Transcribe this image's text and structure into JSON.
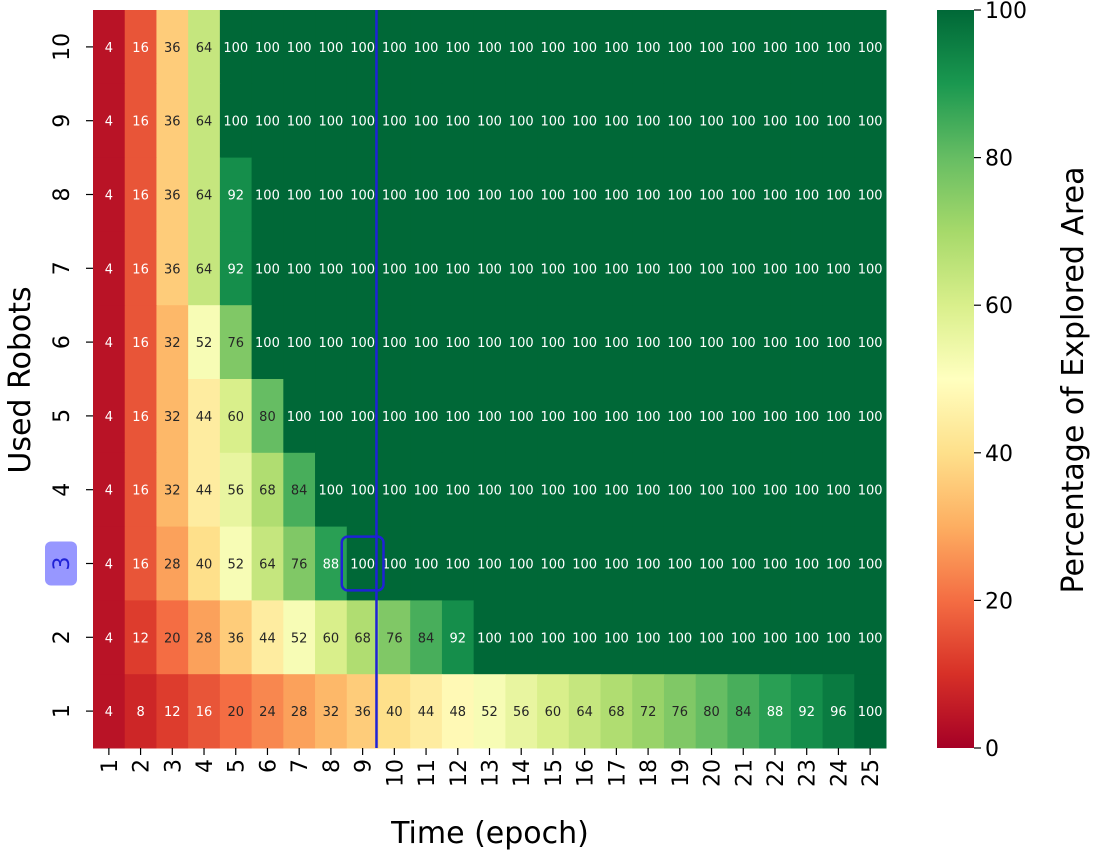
{
  "chart_data": {
    "type": "heatmap",
    "title": "",
    "xlabel": "Time (epoch)",
    "ylabel": "Used Robots",
    "colorbar_label": "Percentage of Explored Area",
    "colormap": "RdYlGn",
    "vmin": 0,
    "vmax": 100,
    "colorbar_ticks": [
      "0",
      "20",
      "40",
      "60",
      "80",
      "100"
    ],
    "x_categories": [
      "1",
      "2",
      "3",
      "4",
      "5",
      "6",
      "7",
      "8",
      "9",
      "10",
      "11",
      "12",
      "13",
      "14",
      "15",
      "16",
      "17",
      "18",
      "19",
      "20",
      "21",
      "22",
      "23",
      "24",
      "25"
    ],
    "y_categories": [
      "10",
      "9",
      "8",
      "7",
      "6",
      "5",
      "4",
      "3",
      "2",
      "1"
    ],
    "values": [
      [
        4,
        16,
        36,
        64,
        100,
        100,
        100,
        100,
        100,
        100,
        100,
        100,
        100,
        100,
        100,
        100,
        100,
        100,
        100,
        100,
        100,
        100,
        100,
        100,
        100
      ],
      [
        4,
        16,
        36,
        64,
        100,
        100,
        100,
        100,
        100,
        100,
        100,
        100,
        100,
        100,
        100,
        100,
        100,
        100,
        100,
        100,
        100,
        100,
        100,
        100,
        100
      ],
      [
        4,
        16,
        36,
        64,
        92,
        100,
        100,
        100,
        100,
        100,
        100,
        100,
        100,
        100,
        100,
        100,
        100,
        100,
        100,
        100,
        100,
        100,
        100,
        100,
        100
      ],
      [
        4,
        16,
        36,
        64,
        92,
        100,
        100,
        100,
        100,
        100,
        100,
        100,
        100,
        100,
        100,
        100,
        100,
        100,
        100,
        100,
        100,
        100,
        100,
        100,
        100
      ],
      [
        4,
        16,
        32,
        52,
        76,
        100,
        100,
        100,
        100,
        100,
        100,
        100,
        100,
        100,
        100,
        100,
        100,
        100,
        100,
        100,
        100,
        100,
        100,
        100,
        100
      ],
      [
        4,
        16,
        32,
        44,
        60,
        80,
        100,
        100,
        100,
        100,
        100,
        100,
        100,
        100,
        100,
        100,
        100,
        100,
        100,
        100,
        100,
        100,
        100,
        100,
        100
      ],
      [
        4,
        16,
        32,
        44,
        56,
        68,
        84,
        100,
        100,
        100,
        100,
        100,
        100,
        100,
        100,
        100,
        100,
        100,
        100,
        100,
        100,
        100,
        100,
        100,
        100
      ],
      [
        4,
        16,
        28,
        40,
        52,
        64,
        76,
        88,
        100,
        100,
        100,
        100,
        100,
        100,
        100,
        100,
        100,
        100,
        100,
        100,
        100,
        100,
        100,
        100,
        100
      ],
      [
        4,
        12,
        20,
        28,
        36,
        44,
        52,
        60,
        68,
        76,
        84,
        92,
        100,
        100,
        100,
        100,
        100,
        100,
        100,
        100,
        100,
        100,
        100,
        100,
        100
      ],
      [
        4,
        8,
        12,
        16,
        20,
        24,
        28,
        32,
        36,
        40,
        44,
        48,
        52,
        56,
        60,
        64,
        68,
        72,
        76,
        80,
        84,
        88,
        92,
        96,
        100
      ]
    ],
    "annotations": {
      "vertical_line_after_epoch": "9",
      "highlighted_cell": {
        "robots": "3",
        "epoch": "9",
        "value": 100
      },
      "highlighted_y_label": "3",
      "line_color": "#1f22d6",
      "highlight_fill": "#8c8cff"
    }
  }
}
